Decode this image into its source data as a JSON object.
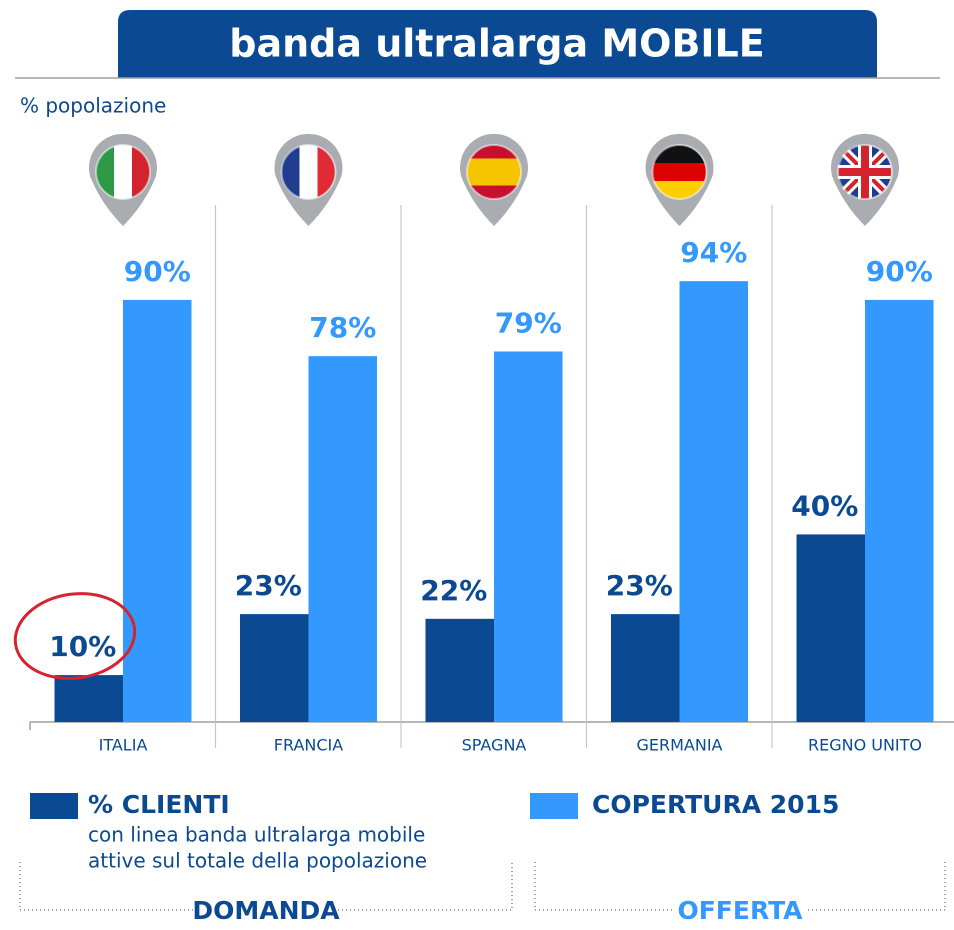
{
  "chart_data": {
    "type": "bar",
    "title": "banda ultralarga MOBILE",
    "y_label": "% popolazione",
    "categories": [
      "ITALIA",
      "FRANCIA",
      "SPAGNA",
      "GERMANIA",
      "REGNO UNITO"
    ],
    "series": [
      {
        "name": "% CLIENTI",
        "color": "#0b4a92",
        "values": [
          10,
          23,
          22,
          23,
          40
        ],
        "value_labels": [
          "10%",
          "23%",
          "22%",
          "23%",
          "40%"
        ]
      },
      {
        "name": "COPERTURA 2015",
        "color": "#3399ff",
        "values": [
          90,
          78,
          79,
          94,
          90
        ],
        "value_labels": [
          "90%",
          "78%",
          "79%",
          "94%",
          "90%"
        ]
      }
    ],
    "legend_note": [
      "con linea banda ultralarga mobile",
      "attive sul totale della popolazione"
    ],
    "groups": [
      "DOMANDA",
      "OFFERTA"
    ],
    "ylim": [
      0,
      100
    ]
  }
}
